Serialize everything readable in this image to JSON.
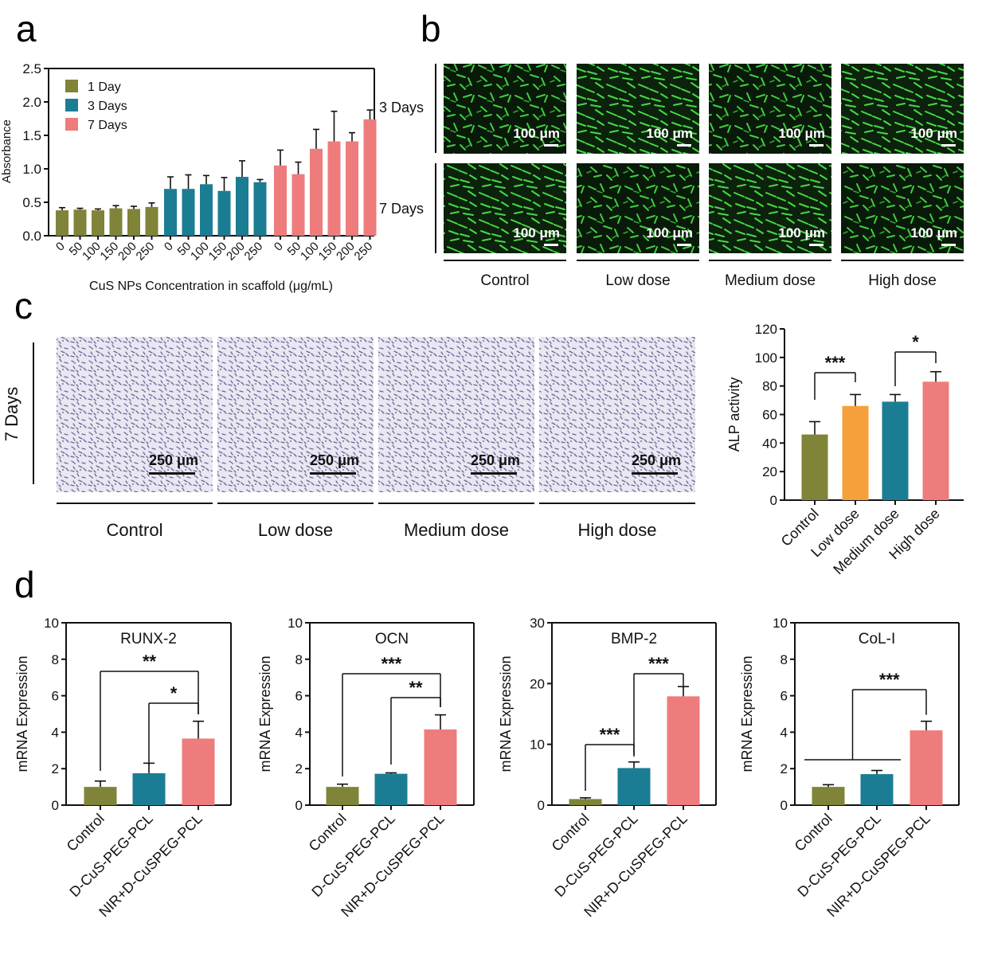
{
  "colors": {
    "olive": "#7f8438",
    "teal": "#1b7d93",
    "salmon": "#ee7c7c",
    "orange": "#f5a03a",
    "fluor_bg": "#0a1a0a",
    "fluor_cell": "#3fcf3f",
    "stain_bg": "#e9e7f1",
    "stain_dot": "#6b6599"
  },
  "panels": {
    "a": "a",
    "b": "b",
    "c": "c",
    "d": "d"
  },
  "chart_data": [
    {
      "id": "a",
      "type": "bar",
      "ylabel": "Absorbance",
      "xlabel": "CuS NPs Concentration in scaffold (μg/mL)",
      "ylim": [
        0,
        2.5
      ],
      "yticks": [
        "0.0",
        "0.5",
        "1.0",
        "1.5",
        "2.0",
        "2.5"
      ],
      "categories": [
        "0",
        "50",
        "100",
        "150",
        "200",
        "250"
      ],
      "legend_position": "top-left",
      "series": [
        {
          "name": "1 Day",
          "color": "#7f8438",
          "values": [
            0.38,
            0.39,
            0.38,
            0.41,
            0.4,
            0.43
          ],
          "errors": [
            0.04,
            0.02,
            0.02,
            0.04,
            0.04,
            0.06
          ]
        },
        {
          "name": "3 Days",
          "color": "#1b7d93",
          "values": [
            0.7,
            0.7,
            0.77,
            0.67,
            0.88,
            0.8
          ],
          "errors": [
            0.18,
            0.21,
            0.13,
            0.2,
            0.24,
            0.04
          ]
        },
        {
          "name": "7 Days",
          "color": "#ee7c7c",
          "values": [
            1.05,
            0.92,
            1.3,
            1.41,
            1.41,
            1.74
          ],
          "errors": [
            0.23,
            0.18,
            0.29,
            0.45,
            0.13,
            0.14
          ]
        }
      ]
    },
    {
      "id": "c-alp",
      "type": "bar",
      "ylabel": "ALP activity",
      "ylim": [
        0,
        120
      ],
      "yticks": [
        "0",
        "20",
        "40",
        "60",
        "80",
        "100",
        "120"
      ],
      "categories": [
        "Control",
        "Low dose",
        "Medium dose",
        "High dose"
      ],
      "values": [
        46,
        66,
        69,
        83
      ],
      "errors": [
        9,
        8,
        5,
        7
      ],
      "colors": [
        "#7f8438",
        "#f5a03a",
        "#1b7d93",
        "#ee7c7c"
      ],
      "significance": [
        {
          "from": 0,
          "to": 1,
          "label": "***"
        },
        {
          "from": 2,
          "to": 3,
          "label": "*"
        }
      ]
    },
    {
      "id": "d-runx2",
      "type": "bar",
      "title": "RUNX-2",
      "ylabel": "mRNA Expression",
      "ylim": [
        0,
        10
      ],
      "yticks": [
        "0",
        "2",
        "4",
        "6",
        "8",
        "10"
      ],
      "categories": [
        "Control",
        "D-CuS-PEG-PCL",
        "NIR+D-CuSPEG-PCL"
      ],
      "values": [
        1.0,
        1.75,
        3.65
      ],
      "errors": [
        0.32,
        0.55,
        0.95
      ],
      "colors": [
        "#7f8438",
        "#1b7d93",
        "#ee7c7c"
      ],
      "significance": [
        {
          "from": 0,
          "to": 2,
          "label": "**"
        },
        {
          "from": 1,
          "to": 2,
          "label": "*"
        }
      ]
    },
    {
      "id": "d-ocn",
      "type": "bar",
      "title": "OCN",
      "ylabel": "mRNA Expression",
      "ylim": [
        0,
        10
      ],
      "yticks": [
        "0",
        "2",
        "4",
        "6",
        "8",
        "10"
      ],
      "categories": [
        "Control",
        "D-CuS-PEG-PCL",
        "NIR+D-CuSPEG-PCL"
      ],
      "values": [
        1.0,
        1.72,
        4.15
      ],
      "errors": [
        0.15,
        0.05,
        0.8
      ],
      "colors": [
        "#7f8438",
        "#1b7d93",
        "#ee7c7c"
      ],
      "significance": [
        {
          "from": 0,
          "to": 2,
          "label": "***"
        },
        {
          "from": 1,
          "to": 2,
          "label": "**"
        }
      ]
    },
    {
      "id": "d-bmp2",
      "type": "bar",
      "title": "BMP-2",
      "ylabel": "mRNA Expression",
      "ylim": [
        0,
        30
      ],
      "yticks": [
        "0",
        "10",
        "20",
        "30"
      ],
      "categories": [
        "Control",
        "D-CuS-PEG-PCL",
        "NIR+D-CuSPEG-PCL"
      ],
      "values": [
        1.0,
        6.1,
        17.9
      ],
      "errors": [
        0.2,
        1.0,
        1.6
      ],
      "colors": [
        "#7f8438",
        "#1b7d93",
        "#ee7c7c"
      ],
      "significance": [
        {
          "from": 0,
          "to": 1,
          "label": "***"
        },
        {
          "from": 1,
          "to": 2,
          "label": "***"
        }
      ]
    },
    {
      "id": "d-col1",
      "type": "bar",
      "title": "CoL-I",
      "ylabel": "mRNA Expression",
      "ylim": [
        0,
        10
      ],
      "yticks": [
        "0",
        "2",
        "4",
        "6",
        "8",
        "10"
      ],
      "categories": [
        "Control",
        "D-CuS-PEG-PCL",
        "NIR+D-CuSPEG-PCL"
      ],
      "values": [
        1.0,
        1.7,
        4.1
      ],
      "errors": [
        0.12,
        0.2,
        0.5
      ],
      "colors": [
        "#7f8438",
        "#1b7d93",
        "#ee7c7c"
      ],
      "significance": [
        {
          "from": 0,
          "to": 2,
          "label": "***",
          "group": true
        }
      ]
    }
  ],
  "panel_b": {
    "row_labels": [
      "3 Days",
      "7 Days"
    ],
    "col_labels": [
      "Control",
      "Low dose",
      "Medium dose",
      "High dose"
    ],
    "scale_bar": "100 μm"
  },
  "panel_c": {
    "row_label": "7 Days",
    "col_labels": [
      "Control",
      "Low dose",
      "Medium dose",
      "High dose"
    ],
    "scale_bar": "250 μm"
  }
}
